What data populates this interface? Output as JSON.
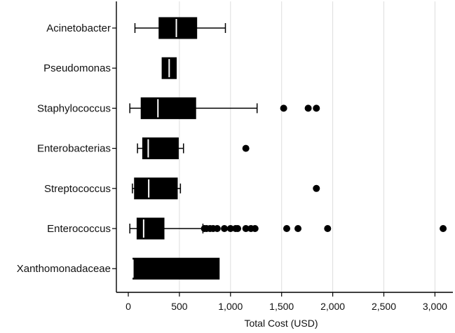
{
  "chart_data": {
    "type": "boxplot",
    "orientation": "horizontal",
    "xlabel": "Total Cost (USD)",
    "xlim": [
      -100,
      3150
    ],
    "x_ticks": [
      0,
      500,
      1000,
      1500,
      2000,
      2500,
      3000
    ],
    "x_tick_labels": [
      "0",
      "500",
      "1,000",
      "1,500",
      "2,000",
      "2,500",
      "3,000"
    ],
    "grid": "vertical",
    "box_color": "#000000",
    "median_color": "#ffffff",
    "categories": [
      "Acinetobacter",
      "Pseudomonas",
      "Staphylococcus",
      "Enterobacterias",
      "Streptococcus",
      "Enterococcus",
      "Xanthomonadaceae"
    ],
    "boxes": [
      {
        "category": "Acinetobacter",
        "whisker_low": 65,
        "q1": 300,
        "median": 470,
        "q3": 670,
        "whisker_high": 950,
        "outliers": []
      },
      {
        "category": "Pseudomonas",
        "whisker_low": 330,
        "q1": 330,
        "median": 400,
        "q3": 470,
        "whisker_high": 470,
        "outliers": []
      },
      {
        "category": "Staphylococcus",
        "whisker_low": 15,
        "q1": 125,
        "median": 290,
        "q3": 660,
        "whisker_high": 1260,
        "outliers": [
          1520,
          1760,
          1840
        ]
      },
      {
        "category": "Enterobacterias",
        "whisker_low": 90,
        "q1": 140,
        "median": 195,
        "q3": 490,
        "whisker_high": 540,
        "outliers": [
          1150
        ]
      },
      {
        "category": "Streptococcus",
        "whisker_low": 40,
        "q1": 60,
        "median": 200,
        "q3": 480,
        "whisker_high": 510,
        "outliers": [
          1840
        ]
      },
      {
        "category": "Enterococcus",
        "whisker_low": 15,
        "q1": 85,
        "median": 150,
        "q3": 350,
        "whisker_high": 730,
        "outliers": [
          745,
          765,
          800,
          830,
          870,
          940,
          1000,
          1050,
          1070,
          1150,
          1200,
          1240,
          1550,
          1660,
          1950,
          3080
        ]
      },
      {
        "category": "Xanthomonadaceae",
        "whisker_low": 45,
        "q1": 45,
        "median": 45,
        "q3": 890,
        "whisker_high": 890,
        "outliers": []
      }
    ]
  }
}
